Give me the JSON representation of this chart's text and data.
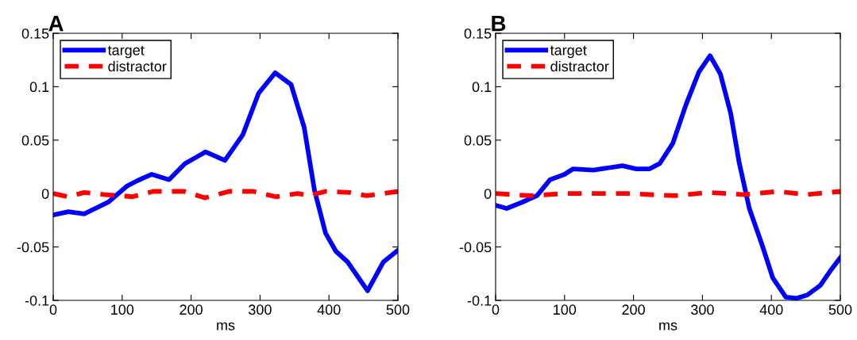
{
  "chart_data": [
    {
      "type": "line",
      "title": "A",
      "xlabel": "ms",
      "xlim": [
        0,
        500
      ],
      "xticks": [
        0,
        100,
        200,
        300,
        400,
        500
      ],
      "ylim": [
        -0.1,
        0.15
      ],
      "yticks": [
        -0.1,
        -0.05,
        0,
        0.05,
        0.1,
        0.15
      ],
      "legend": "top left",
      "grid": false,
      "series": [
        {
          "name": "target",
          "color": "#0000ff",
          "line_style": "solid",
          "x": [
            0,
            22,
            45,
            80,
            107,
            122,
            143,
            168,
            191,
            221,
            249,
            275,
            298,
            322,
            345,
            364,
            379,
            395,
            410,
            427,
            456,
            479,
            500
          ],
          "values": [
            -0.02,
            -0.017,
            -0.019,
            -0.008,
            0.007,
            0.012,
            0.018,
            0.013,
            0.028,
            0.039,
            0.031,
            0.055,
            0.094,
            0.113,
            0.102,
            0.062,
            0.003,
            -0.037,
            -0.054,
            -0.064,
            -0.091,
            -0.064,
            -0.053
          ]
        },
        {
          "name": "distractor",
          "color": "#ff0000",
          "line_style": "dashed",
          "x": [
            0,
            22,
            45,
            75,
            115,
            145,
            190,
            220,
            255,
            290,
            323,
            355,
            370,
            395,
            430,
            455,
            500
          ],
          "values": [
            0,
            -0.003,
            0.001,
            -0.001,
            -0.003,
            0.002,
            0.002,
            -0.004,
            0.002,
            0.002,
            -0.003,
            0,
            -0.002,
            0.002,
            0.001,
            -0.002,
            0.002
          ]
        }
      ]
    },
    {
      "type": "line",
      "title": "B",
      "xlabel": "ms",
      "xlim": [
        0,
        500
      ],
      "xticks": [
        0,
        100,
        200,
        300,
        400,
        500
      ],
      "ylim": [
        -0.1,
        0.15
      ],
      "yticks": [
        -0.1,
        -0.05,
        0,
        0.05,
        0.1,
        0.15
      ],
      "legend": "top left",
      "grid": false,
      "series": [
        {
          "name": "target",
          "color": "#0000ff",
          "line_style": "solid",
          "x": [
            0,
            16,
            39,
            60,
            79,
            100,
            112,
            142,
            184,
            204,
            223,
            238,
            257,
            276,
            295,
            311,
            326,
            341,
            353,
            368,
            387,
            402,
            421,
            437,
            452,
            471,
            487,
            500
          ],
          "values": [
            -0.011,
            -0.014,
            -0.008,
            -0.002,
            0.013,
            0.018,
            0.023,
            0.022,
            0.026,
            0.023,
            0.023,
            0.028,
            0.047,
            0.083,
            0.114,
            0.129,
            0.112,
            0.075,
            0.03,
            -0.014,
            -0.049,
            -0.079,
            -0.097,
            -0.098,
            -0.095,
            -0.086,
            -0.071,
            -0.06
          ]
        },
        {
          "name": "distractor",
          "color": "#ff0000",
          "line_style": "dashed",
          "x": [
            0,
            50,
            100,
            190,
            260,
            310,
            360,
            410,
            450,
            500
          ],
          "values": [
            0,
            -0.002,
            0,
            0,
            -0.002,
            0.001,
            -0.001,
            0.002,
            -0.001,
            0.002
          ]
        }
      ]
    }
  ]
}
